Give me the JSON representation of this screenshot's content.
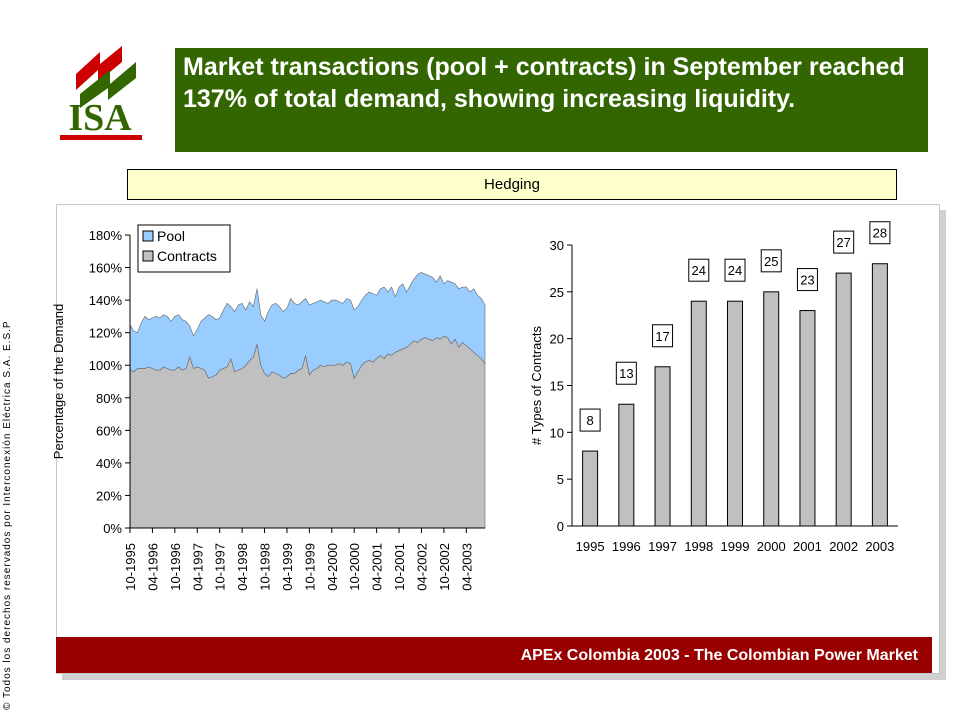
{
  "logo": {
    "text": "ISA"
  },
  "title": "Market transactions (pool + contracts) in September reached 137% of total demand, showing increasing liquidity.",
  "section": "Hedging",
  "footer": "APEx Colombia 2003 - The Colombian Power Market",
  "copyright": "© Todos los derechos reservados por Interconexión Eléctrica S.A. E.S.P",
  "chart_data": [
    {
      "type": "area",
      "stacked": true,
      "y_label": "Percentage of the Demand",
      "legend": "top-left",
      "categories": [
        "10-1995",
        null,
        null,
        null,
        null,
        null,
        "04-1996",
        null,
        null,
        null,
        null,
        null,
        "10-1996",
        null,
        null,
        null,
        null,
        null,
        "04-1997",
        null,
        null,
        null,
        null,
        null,
        "10-1997",
        null,
        null,
        null,
        null,
        null,
        "04-1998",
        null,
        null,
        null,
        null,
        null,
        "10-1998",
        null,
        null,
        null,
        null,
        null,
        "04-1999",
        null,
        null,
        null,
        null,
        null,
        "10-1999",
        null,
        null,
        null,
        null,
        null,
        "04-2000",
        null,
        null,
        null,
        null,
        null,
        "10-2000",
        null,
        null,
        null,
        null,
        null,
        "04-2001",
        null,
        null,
        null,
        null,
        null,
        "10-2001",
        null,
        null,
        null,
        null,
        null,
        "04-2002",
        null,
        null,
        null,
        null,
        null,
        "10-2002",
        null,
        null,
        null,
        null,
        null,
        "04-2003",
        null,
        null,
        null,
        null,
        null
      ],
      "series": [
        {
          "name": "Contracts",
          "color": "#c0c0c0",
          "values": [
            97,
            96,
            98,
            98,
            98,
            99,
            98,
            97,
            97,
            99,
            98,
            97,
            97,
            99,
            97,
            98,
            105,
            98,
            99,
            98,
            97,
            92,
            93,
            94,
            97,
            98,
            99,
            104,
            96,
            97,
            98,
            100,
            103,
            105,
            113,
            100,
            95,
            93,
            96,
            95,
            94,
            92,
            93,
            95,
            95,
            97,
            98,
            106,
            94,
            97,
            98,
            100,
            99,
            100,
            100,
            100,
            101,
            100,
            102,
            101,
            92,
            96,
            100,
            102,
            103,
            102,
            104,
            106,
            104,
            107,
            106,
            108,
            109,
            110,
            111,
            113,
            115,
            114,
            116,
            117,
            116,
            115,
            117,
            116,
            118,
            117,
            113,
            116,
            111,
            114,
            112,
            110,
            108,
            106,
            104,
            101
          ]
        },
        {
          "name": "Pool",
          "color": "#99ccff",
          "values": [
            28,
            25,
            22,
            28,
            32,
            29,
            31,
            33,
            32,
            32,
            32,
            30,
            33,
            32,
            31,
            29,
            19,
            20,
            23,
            29,
            32,
            39,
            37,
            34,
            32,
            36,
            39,
            32,
            37,
            40,
            40,
            34,
            36,
            31,
            34,
            31,
            32,
            40,
            41,
            43,
            42,
            41,
            42,
            46,
            43,
            40,
            41,
            35,
            43,
            41,
            41,
            40,
            40,
            38,
            40,
            40,
            38,
            38,
            39,
            39,
            42,
            40,
            40,
            41,
            42,
            42,
            39,
            41,
            44,
            38,
            42,
            34,
            39,
            40,
            34,
            36,
            38,
            42,
            41,
            39,
            39,
            39,
            34,
            39,
            32,
            35,
            38,
            34,
            36,
            34,
            36,
            35,
            39,
            37,
            37,
            36
          ]
        }
      ],
      "ylim": [
        0,
        180
      ],
      "yticks": [
        {
          "value": 0,
          "label": "0%"
        },
        {
          "value": 20,
          "label": "20%"
        },
        {
          "value": 40,
          "label": "40%"
        },
        {
          "value": 60,
          "label": "60%"
        },
        {
          "value": 80,
          "label": "80%"
        },
        {
          "value": 100,
          "label": "100%"
        },
        {
          "value": 120,
          "label": "120%"
        },
        {
          "value": 140,
          "label": "140%"
        },
        {
          "value": 160,
          "label": "160%"
        },
        {
          "value": 180,
          "label": "180%"
        }
      ]
    },
    {
      "type": "bar",
      "y_label": "# Types of Contracts",
      "color": "#c0c0c0",
      "categories": [
        "1995",
        "1996",
        "1997",
        "1998",
        "1999",
        "2000",
        "2001",
        "2002",
        "2003"
      ],
      "values": [
        8,
        13,
        17,
        24,
        24,
        25,
        23,
        27,
        28
      ],
      "ylim": [
        0,
        30
      ],
      "yticks": [
        0,
        5,
        10,
        15,
        20,
        25,
        30
      ]
    }
  ]
}
